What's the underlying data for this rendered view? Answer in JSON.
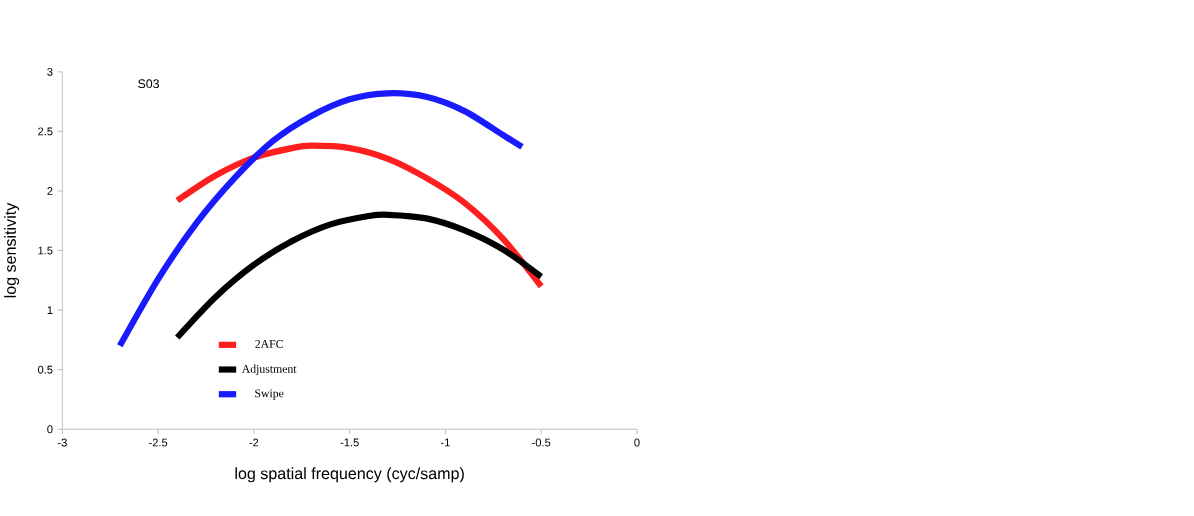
{
  "chart_data": {
    "type": "line",
    "title": "S03",
    "xlabel": "log spatial frequency (cyc/samp)",
    "ylabel": "log sensitivity",
    "xlim": [
      -3,
      0
    ],
    "ylim": [
      0,
      3
    ],
    "xticks": [
      -3,
      -2.5,
      -2,
      -1.5,
      -1,
      -0.5,
      0
    ],
    "yticks": [
      0,
      0.5,
      1,
      1.5,
      2,
      2.5,
      3
    ],
    "legend": "bottom left",
    "grid": false,
    "marker": "none",
    "line_style": "solid",
    "series": [
      {
        "name": "2AFC",
        "color": "#ff1f1f",
        "x": [
          -2.4,
          -2.2,
          -2.0,
          -1.8,
          -1.7,
          -1.5,
          -1.3,
          -1.1,
          -0.9,
          -0.7,
          -0.5
        ],
        "values": [
          1.92,
          2.13,
          2.28,
          2.36,
          2.38,
          2.36,
          2.27,
          2.11,
          1.9,
          1.6,
          1.2
        ]
      },
      {
        "name": "Adjustment",
        "color": "#000000",
        "x": [
          -2.4,
          -2.2,
          -2.0,
          -1.8,
          -1.6,
          -1.4,
          -1.3,
          -1.1,
          -0.9,
          -0.7,
          -0.5
        ],
        "values": [
          0.77,
          1.11,
          1.38,
          1.58,
          1.72,
          1.79,
          1.8,
          1.77,
          1.67,
          1.51,
          1.28
        ]
      },
      {
        "name": "Swipe",
        "color": "#1a1aff",
        "x": [
          -2.7,
          -2.5,
          -2.3,
          -2.1,
          -1.9,
          -1.7,
          -1.5,
          -1.3,
          -1.1,
          -0.9,
          -0.7,
          -0.6
        ],
        "values": [
          0.7,
          1.26,
          1.73,
          2.11,
          2.42,
          2.63,
          2.77,
          2.82,
          2.79,
          2.67,
          2.47,
          2.37
        ]
      }
    ]
  }
}
